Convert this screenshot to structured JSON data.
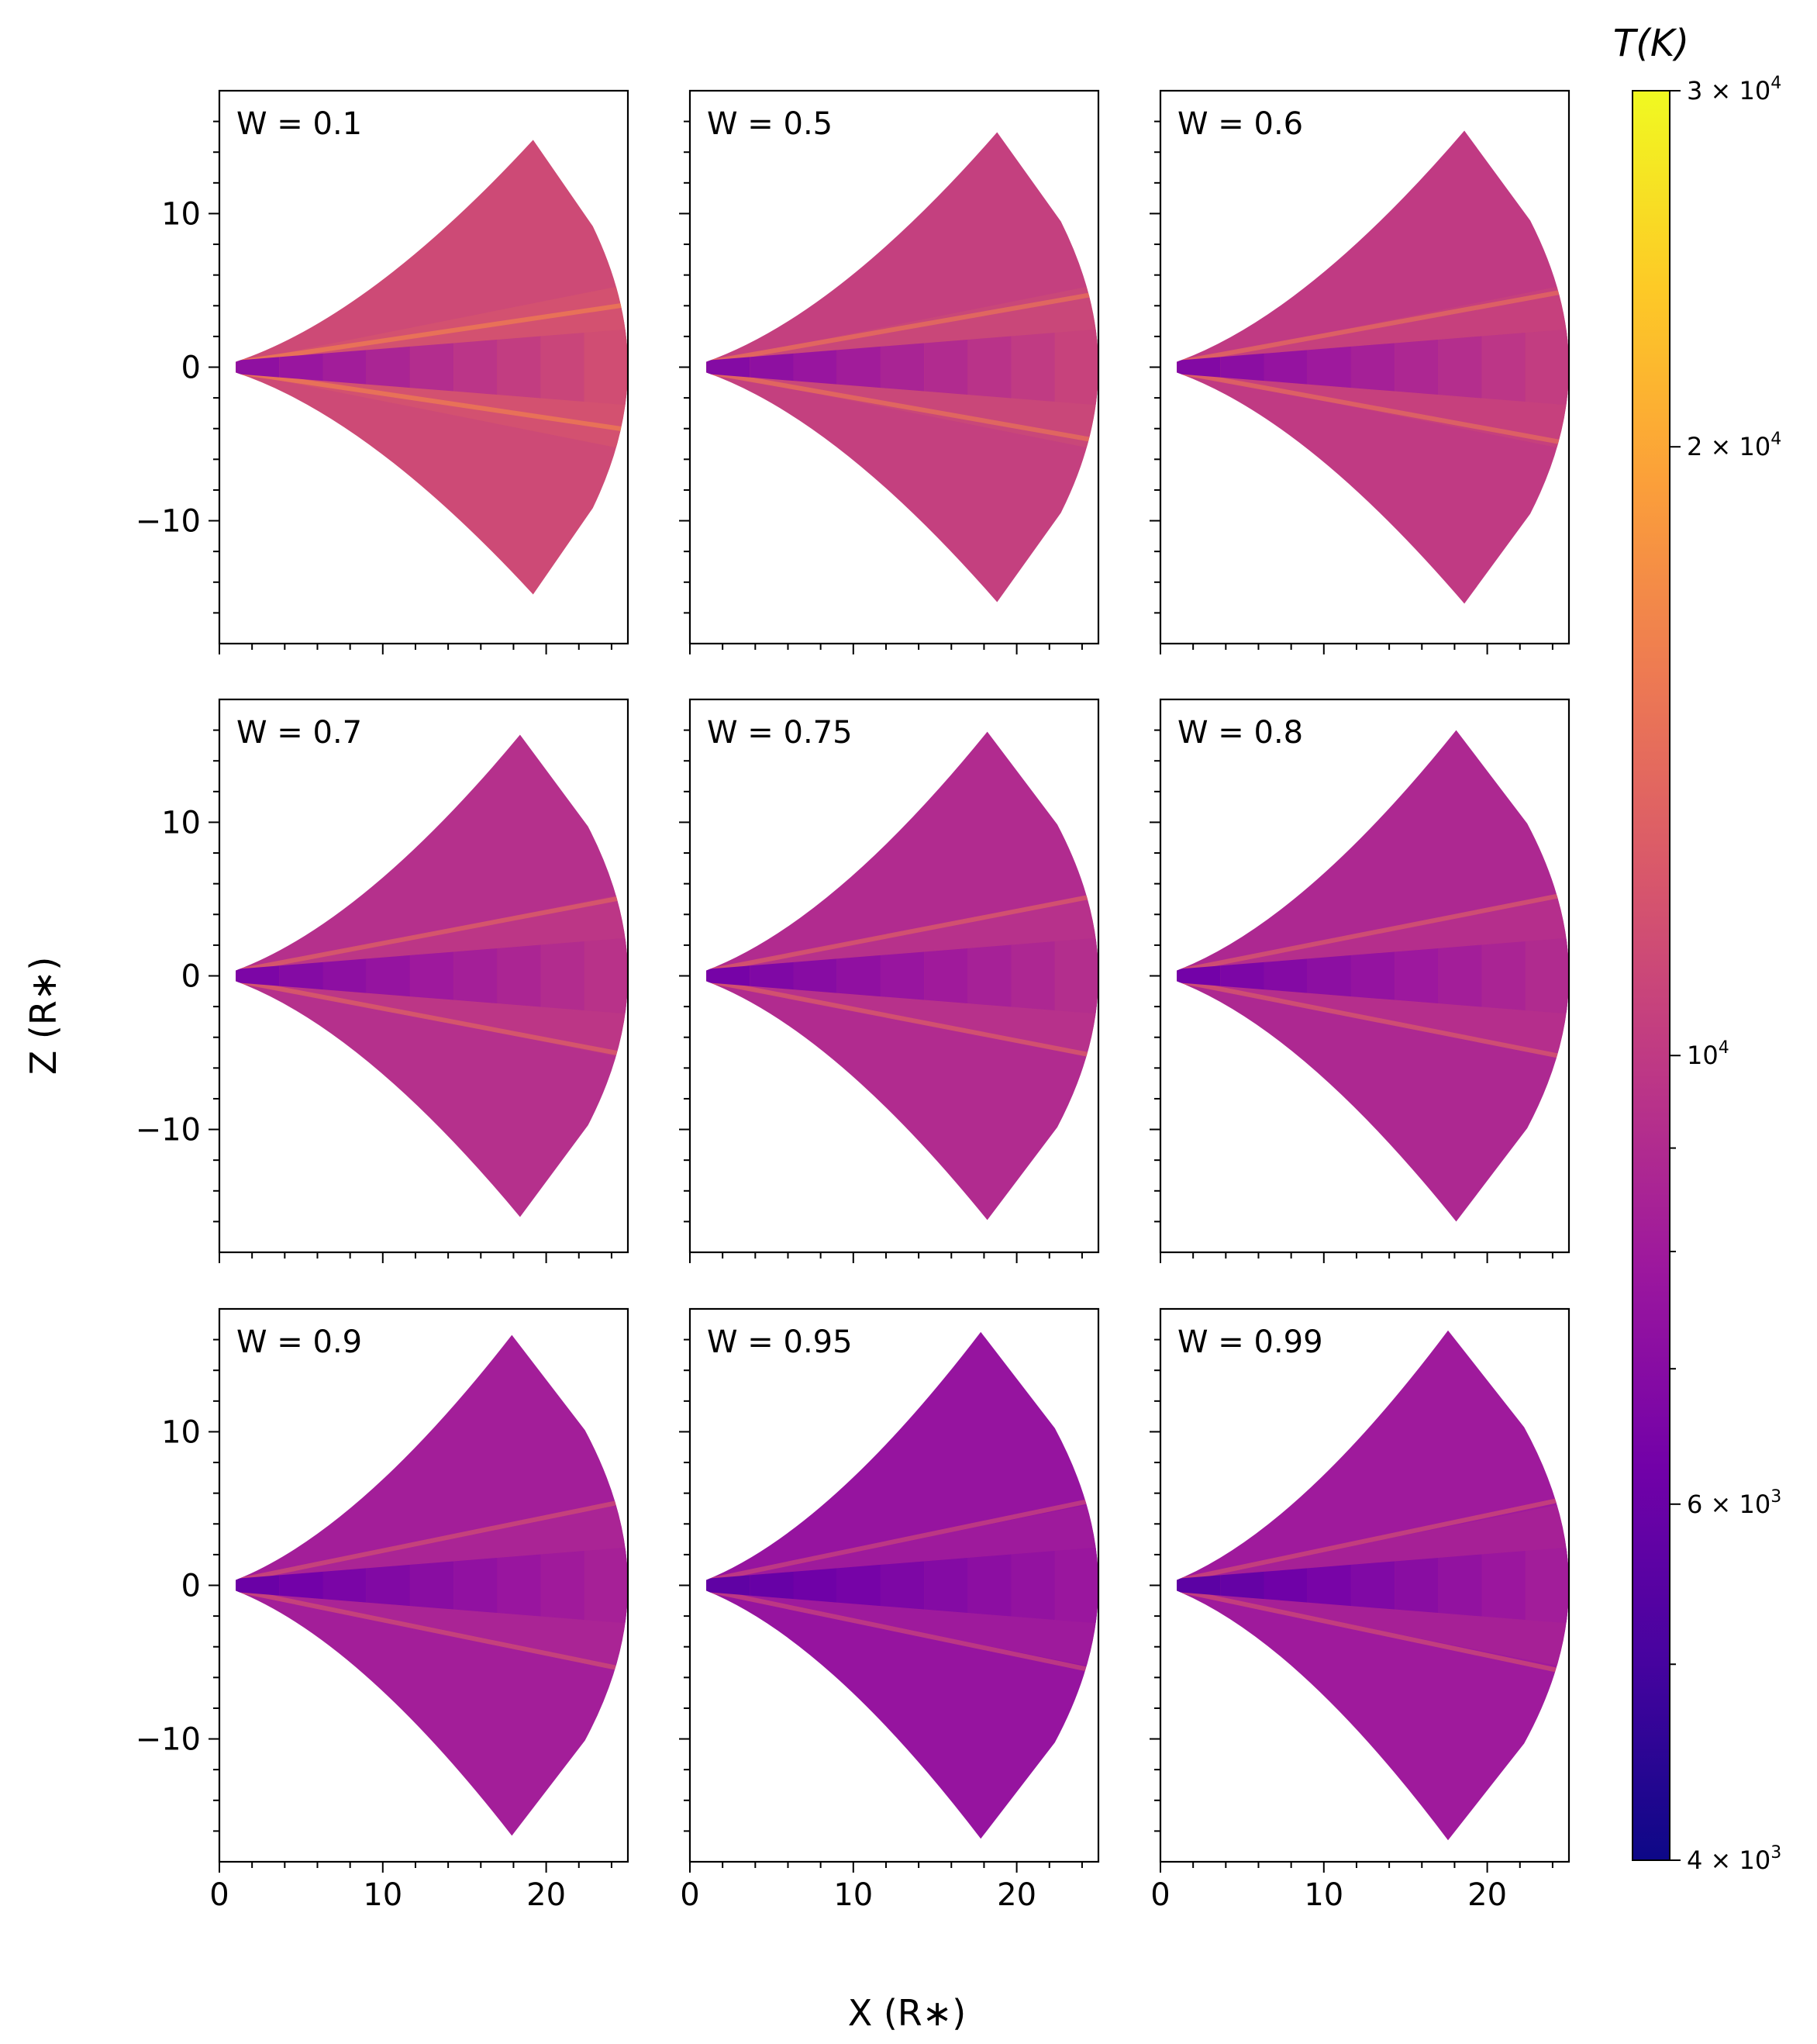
{
  "chart_data": {
    "type": "heatmap",
    "description_hint": "",
    "xlabel": "X (R∗)",
    "ylabel": "Z (R∗)",
    "xlim": [
      0,
      25
    ],
    "ylim": [
      -18,
      18
    ],
    "x_ticks": [
      0,
      10,
      20
    ],
    "y_ticks": [
      10,
      0,
      -10
    ],
    "x_tick_labels": [
      "0",
      "10",
      "20"
    ],
    "y_tick_labels": [
      "10",
      "0",
      "−10"
    ],
    "panels": [
      {
        "label": "W = 0.1",
        "w": 0.1,
        "apex_x": 19.2,
        "apex_z": 14.8,
        "outer_x": 25,
        "base_temp_K": 11200,
        "midplane_temp_K": 7300
      },
      {
        "label": "W = 0.5",
        "w": 0.5,
        "apex_x": 18.8,
        "apex_z": 15.3,
        "outer_x": 25,
        "base_temp_K": 10400,
        "midplane_temp_K": 6900
      },
      {
        "label": "W = 0.6",
        "w": 0.6,
        "apex_x": 18.6,
        "apex_z": 15.4,
        "outer_x": 25,
        "base_temp_K": 10000,
        "midplane_temp_K": 6800
      },
      {
        "label": "W = 0.7",
        "w": 0.7,
        "apex_x": 18.4,
        "apex_z": 15.7,
        "outer_x": 25,
        "base_temp_K": 9300,
        "midplane_temp_K": 6600
      },
      {
        "label": "W = 0.75",
        "w": 0.75,
        "apex_x": 18.2,
        "apex_z": 15.9,
        "outer_x": 25,
        "base_temp_K": 9000,
        "midplane_temp_K": 6400
      },
      {
        "label": "W = 0.8",
        "w": 0.8,
        "apex_x": 18.1,
        "apex_z": 16.0,
        "outer_x": 25,
        "base_temp_K": 8800,
        "midplane_temp_K": 6300
      },
      {
        "label": "W = 0.9",
        "w": 0.9,
        "apex_x": 17.9,
        "apex_z": 16.3,
        "outer_x": 25,
        "base_temp_K": 8200,
        "midplane_temp_K": 6000
      },
      {
        "label": "W = 0.95",
        "w": 0.95,
        "apex_x": 17.8,
        "apex_z": 16.5,
        "outer_x": 25,
        "base_temp_K": 7600,
        "midplane_temp_K": 5700
      },
      {
        "label": "W = 0.99",
        "w": 0.99,
        "apex_x": 17.6,
        "apex_z": 16.6,
        "outer_x": 25,
        "base_temp_K": 8000,
        "midplane_temp_K": 5600
      }
    ],
    "colorbar": {
      "title": "T(K)",
      "scale": "log",
      "colormap": "plasma",
      "range_K": [
        4000,
        30000
      ],
      "major_ticks": [
        {
          "value": 30000,
          "mantissa": "3",
          "exp": "4"
        },
        {
          "value": 20000,
          "mantissa": "2",
          "exp": "4"
        },
        {
          "value": 10000,
          "mantissa": "",
          "exp": "4"
        },
        {
          "value": 6000,
          "mantissa": "6",
          "exp": "3"
        },
        {
          "value": 4000,
          "mantissa": "4",
          "exp": "3"
        }
      ],
      "minor_ticks": [
        5000,
        7000,
        8000,
        9000
      ],
      "colors": [
        "#0d0887",
        "#46039f",
        "#7201a8",
        "#9c179e",
        "#bd3786",
        "#d8576b",
        "#ed7953",
        "#fb9f3a",
        "#fdca26",
        "#f0f921"
      ]
    }
  }
}
